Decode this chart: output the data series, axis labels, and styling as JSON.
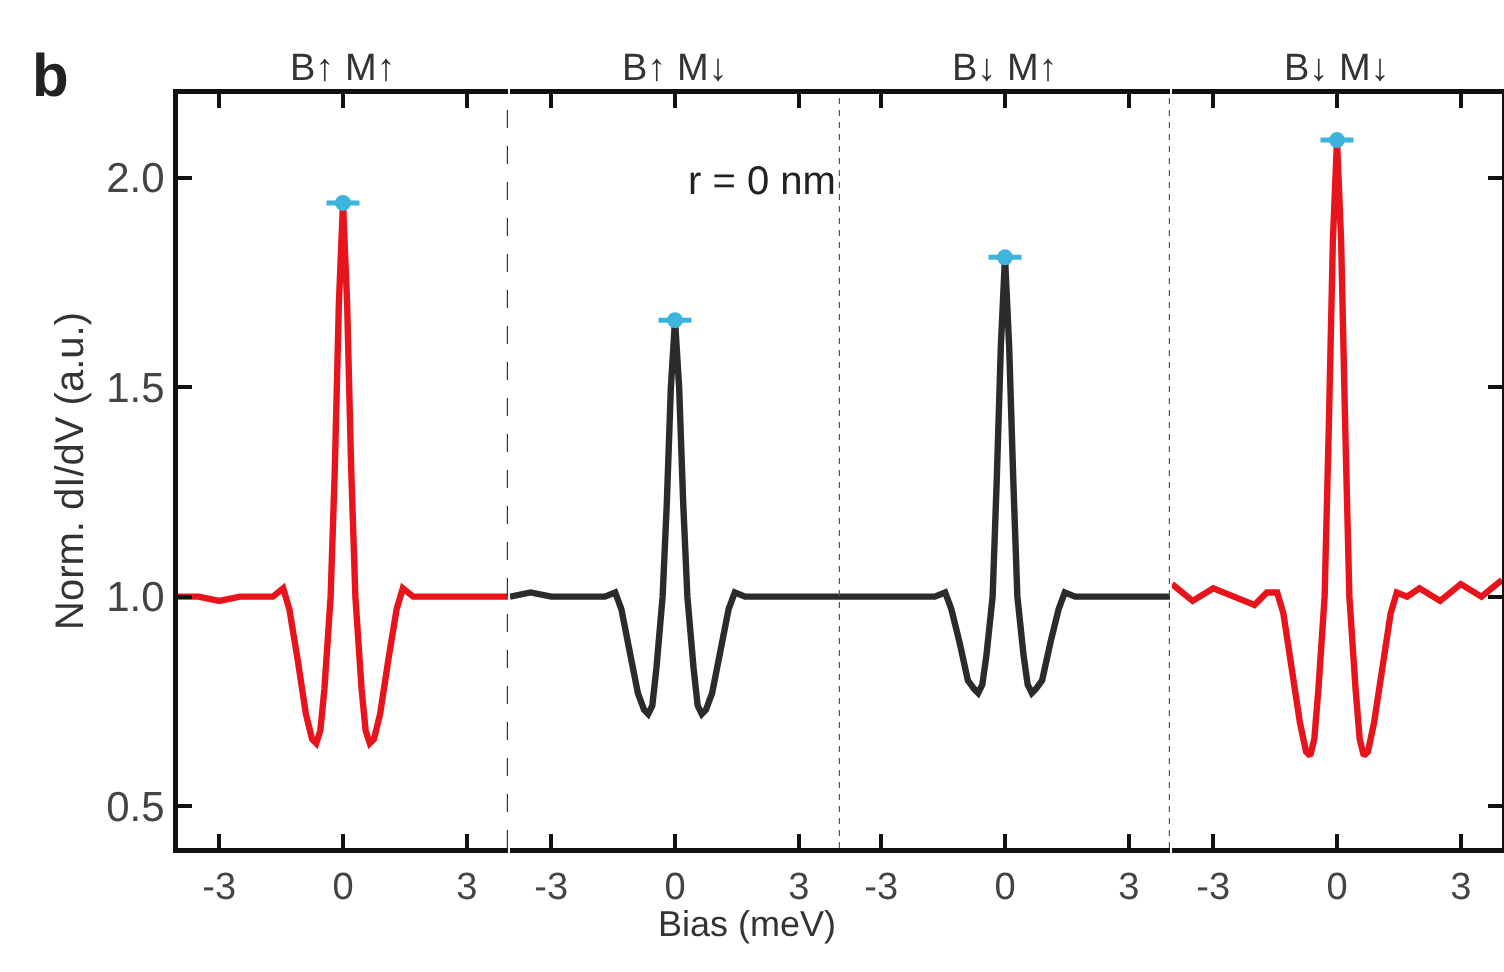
{
  "chart_data": [
    {
      "type": "line",
      "title": "B↑ M↑",
      "ylabel": "Norm. dI/dV (a.u.)",
      "annotations": [
        "b"
      ],
      "xlim": [
        -4,
        4
      ],
      "xticks": [
        -3,
        0,
        3
      ],
      "ylim": [
        0.4,
        2.2
      ],
      "yticks": [
        {
          "value": 0.5,
          "label": "0.5"
        },
        {
          "value": 1,
          "label": "1.0"
        },
        {
          "value": 1.5,
          "label": "1.5"
        },
        {
          "value": 2,
          "label": "2.0"
        }
      ],
      "grid": false,
      "marker": "none",
      "x": [
        -4,
        -3.5,
        -3,
        -2.5,
        -2,
        -1.7,
        -1.45,
        -1.3,
        -1.1,
        -0.9,
        -0.75,
        -0.65,
        -0.55,
        -0.45,
        -0.3,
        -0.2,
        -0.1,
        0,
        0.1,
        0.2,
        0.3,
        0.45,
        0.55,
        0.65,
        0.75,
        0.9,
        1.1,
        1.3,
        1.45,
        1.7,
        2,
        2.5,
        3,
        3.5,
        4
      ],
      "series": [
        {
          "color": "#e8141c",
          "values": [
            1.0,
            1.0,
            0.99,
            1.0,
            1.0,
            1.0,
            1.02,
            0.97,
            0.85,
            0.72,
            0.66,
            0.65,
            0.68,
            0.78,
            1.0,
            1.3,
            1.7,
            1.94,
            1.7,
            1.3,
            1.0,
            0.78,
            0.68,
            0.65,
            0.66,
            0.72,
            0.85,
            0.97,
            1.02,
            1.0,
            1.0,
            1.0,
            1.0,
            1.0,
            1.0
          ]
        },
        {
          "type": "scatter",
          "marker": "circle",
          "color": "#3cb4dc",
          "values": [
            null,
            null,
            null,
            null,
            null,
            null,
            null,
            null,
            null,
            null,
            null,
            null,
            null,
            null,
            null,
            null,
            null,
            1.94,
            null,
            null,
            null,
            null,
            null,
            null,
            null,
            null,
            null,
            null,
            null,
            null,
            null,
            null,
            null,
            null,
            null
          ],
          "xerrors": [
            null,
            null,
            null,
            null,
            null,
            null,
            null,
            null,
            null,
            null,
            null,
            null,
            null,
            null,
            null,
            null,
            null,
            0.4,
            null,
            null,
            null,
            null,
            null,
            null,
            null,
            null,
            null,
            null,
            null,
            null,
            null,
            null,
            null,
            null,
            null
          ]
        }
      ],
      "ref_lines": [
        {
          "axis": "x",
          "value": 4,
          "line_style": "dashed",
          "color": "#333333"
        }
      ]
    },
    {
      "type": "line",
      "title": "B↑ M↓",
      "xlabel": "Bias (meV)",
      "annotations": [
        "r = 0 nm"
      ],
      "tick_labels": "x",
      "xlim": [
        -4,
        4
      ],
      "xticks": [
        -3,
        0,
        3
      ],
      "ylim": [
        0.4,
        2.2
      ],
      "grid": false,
      "marker": "none",
      "x": [
        -4,
        -3.5,
        -3,
        -2.5,
        -2,
        -1.7,
        -1.45,
        -1.3,
        -1.1,
        -0.9,
        -0.75,
        -0.65,
        -0.55,
        -0.45,
        -0.3,
        -0.2,
        -0.1,
        0,
        0.1,
        0.2,
        0.3,
        0.45,
        0.55,
        0.65,
        0.75,
        0.9,
        1.1,
        1.3,
        1.45,
        1.7,
        2,
        2.5,
        3,
        3.5,
        4
      ],
      "series": [
        {
          "color": "#2b2b2b",
          "values": [
            1.0,
            1.01,
            1.0,
            1.0,
            1.0,
            1.0,
            1.01,
            0.97,
            0.87,
            0.77,
            0.73,
            0.72,
            0.74,
            0.83,
            1.0,
            1.22,
            1.5,
            1.66,
            1.5,
            1.22,
            1.0,
            0.83,
            0.74,
            0.72,
            0.73,
            0.77,
            0.87,
            0.97,
            1.01,
            1.0,
            1.0,
            1.0,
            1.0,
            1.0,
            1.0
          ]
        },
        {
          "type": "scatter",
          "marker": "circle",
          "color": "#3cb4dc",
          "values": [
            null,
            null,
            null,
            null,
            null,
            null,
            null,
            null,
            null,
            null,
            null,
            null,
            null,
            null,
            null,
            null,
            null,
            1.66,
            null,
            null,
            null,
            null,
            null,
            null,
            null,
            null,
            null,
            null,
            null,
            null,
            null,
            null,
            null,
            null,
            null
          ],
          "xerrors": [
            null,
            null,
            null,
            null,
            null,
            null,
            null,
            null,
            null,
            null,
            null,
            null,
            null,
            null,
            null,
            null,
            null,
            0.4,
            null,
            null,
            null,
            null,
            null,
            null,
            null,
            null,
            null,
            null,
            null,
            null,
            null,
            null,
            null,
            null,
            null
          ]
        }
      ],
      "ref_lines": [
        {
          "axis": "x",
          "value": 4,
          "line_style": "dotted",
          "color": "#555555"
        }
      ]
    },
    {
      "type": "line",
      "title": "B↓ M↑",
      "tick_labels": "x",
      "xlim": [
        -4,
        4
      ],
      "xticks": [
        -3,
        0,
        3
      ],
      "ylim": [
        0.4,
        2.2
      ],
      "grid": false,
      "marker": "none",
      "x": [
        -4,
        -3.5,
        -3,
        -2.5,
        -2,
        -1.7,
        -1.45,
        -1.3,
        -1.1,
        -0.9,
        -0.75,
        -0.65,
        -0.55,
        -0.45,
        -0.3,
        -0.2,
        -0.1,
        0,
        0.1,
        0.2,
        0.3,
        0.45,
        0.55,
        0.65,
        0.75,
        0.9,
        1.1,
        1.3,
        1.45,
        1.7,
        2,
        2.5,
        3,
        3.5,
        4
      ],
      "series": [
        {
          "color": "#2b2b2b",
          "values": [
            1.0,
            1.0,
            1.0,
            1.0,
            1.0,
            1.0,
            1.01,
            0.97,
            0.89,
            0.8,
            0.78,
            0.77,
            0.79,
            0.86,
            1.0,
            1.28,
            1.6,
            1.81,
            1.6,
            1.28,
            1.0,
            0.86,
            0.79,
            0.77,
            0.78,
            0.8,
            0.89,
            0.97,
            1.01,
            1.0,
            1.0,
            1.0,
            1.0,
            1.0,
            1.0
          ]
        },
        {
          "type": "scatter",
          "marker": "circle",
          "color": "#3cb4dc",
          "values": [
            null,
            null,
            null,
            null,
            null,
            null,
            null,
            null,
            null,
            null,
            null,
            null,
            null,
            null,
            null,
            null,
            null,
            1.81,
            null,
            null,
            null,
            null,
            null,
            null,
            null,
            null,
            null,
            null,
            null,
            null,
            null,
            null,
            null,
            null,
            null
          ],
          "xerrors": [
            null,
            null,
            null,
            null,
            null,
            null,
            null,
            null,
            null,
            null,
            null,
            null,
            null,
            null,
            null,
            null,
            null,
            0.4,
            null,
            null,
            null,
            null,
            null,
            null,
            null,
            null,
            null,
            null,
            null,
            null,
            null,
            null,
            null,
            null,
            null
          ]
        }
      ],
      "ref_lines": [
        {
          "axis": "x",
          "value": 4,
          "line_style": "dotted",
          "color": "#555555"
        }
      ]
    },
    {
      "type": "line",
      "title": "B↓ M↓",
      "tick_labels": "x",
      "xlim": [
        -4,
        4
      ],
      "xticks": [
        -3,
        0,
        3
      ],
      "ylim": [
        0.4,
        2.2
      ],
      "yticks": [
        {
          "value": 0.5,
          "label": null
        },
        {
          "value": 1,
          "label": null
        },
        {
          "value": 1.5,
          "label": null
        },
        {
          "value": 2,
          "label": null
        }
      ],
      "grid": false,
      "marker": "none",
      "x": [
        -4,
        -3.5,
        -3,
        -2.5,
        -2,
        -1.7,
        -1.45,
        -1.3,
        -1.1,
        -0.9,
        -0.75,
        -0.65,
        -0.55,
        -0.45,
        -0.3,
        -0.2,
        -0.1,
        0,
        0.1,
        0.2,
        0.3,
        0.45,
        0.55,
        0.65,
        0.75,
        0.9,
        1.1,
        1.3,
        1.45,
        1.7,
        2,
        2.5,
        3,
        3.5,
        4
      ],
      "series": [
        {
          "color": "#e8141c",
          "values": [
            1.03,
            0.99,
            1.02,
            1.0,
            0.98,
            1.01,
            1.01,
            0.96,
            0.83,
            0.7,
            0.63,
            0.62,
            0.66,
            0.78,
            1.0,
            1.4,
            1.85,
            2.09,
            1.85,
            1.4,
            1.0,
            0.78,
            0.66,
            0.62,
            0.63,
            0.7,
            0.83,
            0.96,
            1.01,
            1.0,
            1.02,
            0.99,
            1.03,
            1.0,
            1.04
          ]
        },
        {
          "type": "scatter",
          "marker": "circle",
          "color": "#3cb4dc",
          "values": [
            null,
            null,
            null,
            null,
            null,
            null,
            null,
            null,
            null,
            null,
            null,
            null,
            null,
            null,
            null,
            null,
            null,
            2.09,
            null,
            null,
            null,
            null,
            null,
            null,
            null,
            null,
            null,
            null,
            null,
            null,
            null,
            null,
            null,
            null,
            null
          ],
          "xerrors": [
            null,
            null,
            null,
            null,
            null,
            null,
            null,
            null,
            null,
            null,
            null,
            null,
            null,
            null,
            null,
            null,
            null,
            0.4,
            null,
            null,
            null,
            null,
            null,
            null,
            null,
            null,
            null,
            null,
            null,
            null,
            null,
            null,
            null,
            null,
            null
          ]
        }
      ]
    }
  ]
}
